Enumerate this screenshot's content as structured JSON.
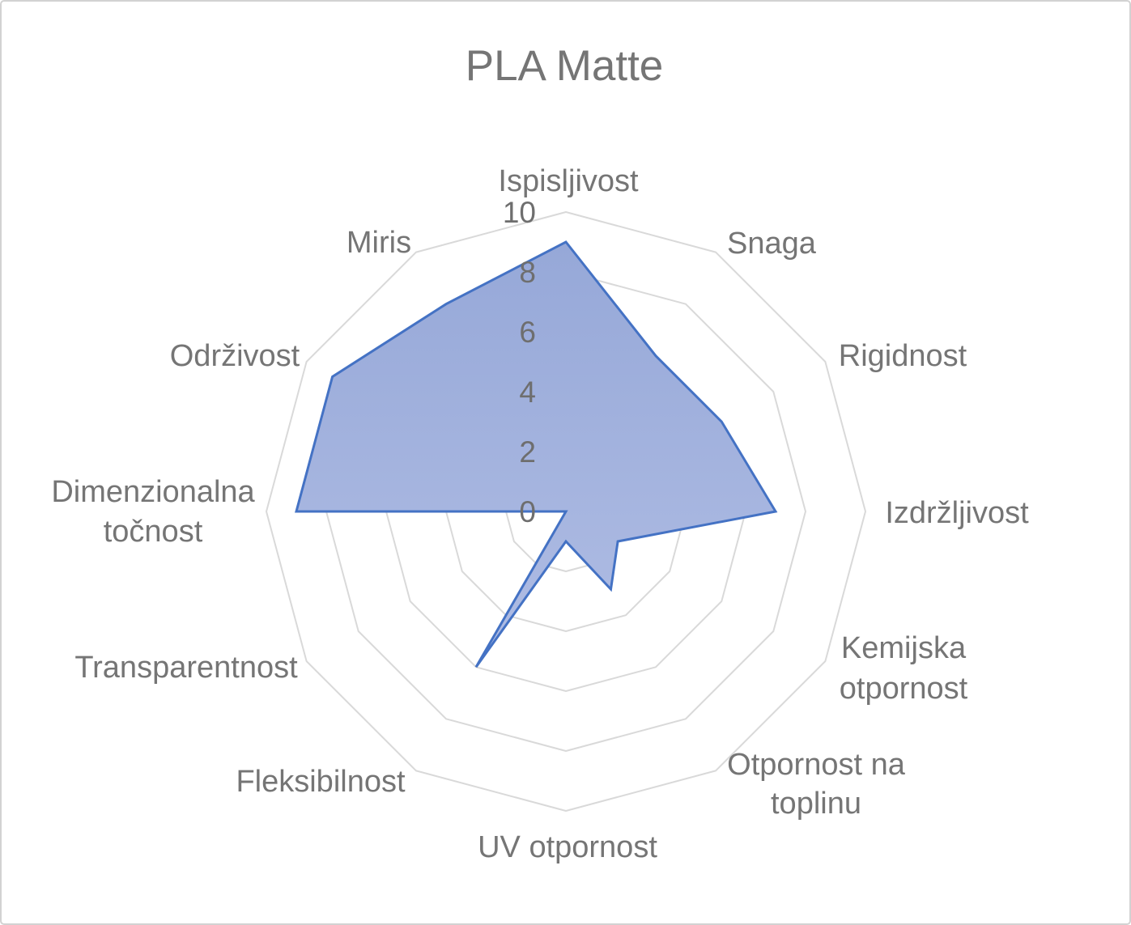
{
  "chart_data": {
    "type": "radar",
    "title": "PLA Matte",
    "categories": [
      "Ispisljivost",
      "Snaga",
      "Rigidnost",
      "Izdržljivost",
      "Kemijska otpornost",
      "Otpornost na toplinu",
      "UV otpornost",
      "Fleksibilnost",
      "Transparentnost",
      "Dimenzionalna točnost",
      "Održivost",
      "Miris"
    ],
    "values": [
      9,
      6,
      6,
      7,
      2,
      3,
      1,
      6,
      0,
      9,
      9,
      8
    ],
    "scale": {
      "min": 0,
      "max": 10,
      "step": 2,
      "tick_labels": [
        "0",
        "2",
        "4",
        "6",
        "8",
        "10"
      ]
    },
    "grid": "concentric-polygon-rings",
    "legend": "none",
    "colors": {
      "series_line": "#4472C4",
      "series_fill_top": "#96A8D8",
      "series_fill_bottom": "#B0BDE4",
      "grid_line": "#D9D9D9",
      "text": "#757575"
    }
  }
}
